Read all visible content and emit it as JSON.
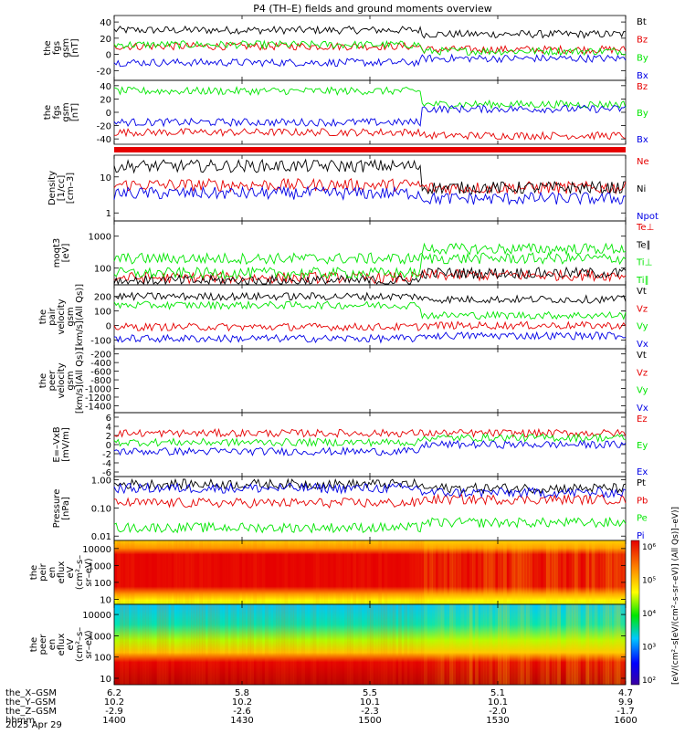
{
  "title": "P4 (TH–E) fields and ground moments overview",
  "colors": {
    "black": "#000000",
    "red": "#e60000",
    "green": "#00e600",
    "blue": "#0000e6"
  },
  "time_axis": {
    "rows": [
      {
        "label": "the_X–GSM",
        "values": [
          "6.2",
          "5.8",
          "5.5",
          "5.1",
          "4.7"
        ]
      },
      {
        "label": "the_Y–GSM",
        "values": [
          "10.2",
          "10.2",
          "10.1",
          "10.1",
          "9.9"
        ]
      },
      {
        "label": "the_Z–GSM",
        "values": [
          "-2.9",
          "-2.6",
          "-2.3",
          "-2.0",
          "-1.7"
        ]
      },
      {
        "label": "hhmm",
        "values": [
          "1400",
          "1430",
          "1500",
          "1530",
          "1600"
        ]
      }
    ],
    "date": "2025 Apr 29",
    "range_hhmm": [
      "1400",
      "1600"
    ]
  },
  "panels": [
    {
      "ylabel": [
        "the",
        "fgs",
        "gsm",
        "[nT]"
      ],
      "ticks": [
        "40",
        "20",
        "0",
        "-20"
      ],
      "ylim": [
        -32,
        48
      ],
      "legend": [
        {
          "text": "Bt",
          "color": "#000000"
        },
        {
          "text": "Bz",
          "color": "#e60000"
        },
        {
          "text": "By",
          "color": "#00e600"
        },
        {
          "text": "Bx",
          "color": "#0000e6"
        }
      ]
    },
    {
      "ylabel": [
        "the",
        "fgs",
        "gsm",
        "[nT]"
      ],
      "ticks": [
        "40",
        "20",
        "0",
        "-20",
        "-40"
      ],
      "ylim": [
        -48,
        48
      ],
      "legend": [
        {
          "text": "Bz",
          "color": "#e60000"
        },
        {
          "text": "By",
          "color": "#00e600"
        },
        {
          "text": "Bx",
          "color": "#0000e6"
        }
      ]
    },
    {
      "ylabel": [
        "Density",
        "[1/cc]",
        "[cm–3]"
      ],
      "ticks": [
        "10",
        "1"
      ],
      "scale": "log",
      "ylim": [
        0.6,
        40
      ],
      "legend": [
        {
          "text": "Ne",
          "color": "#e60000"
        },
        {
          "text": "Ni",
          "color": "#000000"
        },
        {
          "text": "Npot",
          "color": "#0000e6"
        }
      ]
    },
    {
      "ylabel": [
        "moqt3",
        "[eV]"
      ],
      "ticks": [
        "1000",
        "100"
      ],
      "scale": "log",
      "ylim": [
        30,
        3000
      ],
      "legend": [
        {
          "text": "Te⊥",
          "color": "#e60000"
        },
        {
          "text": "Te∥",
          "color": "#000000"
        },
        {
          "text": "Ti⊥",
          "color": "#00e600"
        },
        {
          "text": "Ti∥",
          "color": "#00e600"
        }
      ]
    },
    {
      "ylabel": [
        "the",
        "pair",
        "velocity",
        "gsm",
        "[km/s](All Qs)]"
      ],
      "ticks": [
        "200",
        "100",
        "0",
        "-100"
      ],
      "ylim": [
        -160,
        280
      ],
      "legend": [
        {
          "text": "Vt",
          "color": "#000000"
        },
        {
          "text": "Vz",
          "color": "#e60000"
        },
        {
          "text": "Vy",
          "color": "#00e600"
        },
        {
          "text": "Vx",
          "color": "#0000e6"
        }
      ]
    },
    {
      "ylabel": [
        "the",
        "peer",
        "velocity",
        "gsm",
        "[km/s](All Qs)]"
      ],
      "ticks": [
        "-200",
        "-400",
        "-600",
        "-800",
        "-1000",
        "-1200",
        "-1400"
      ],
      "ylim": [
        -1560,
        -80
      ],
      "legend": [
        {
          "text": "Vt",
          "color": "#000000"
        },
        {
          "text": "Vz",
          "color": "#e60000"
        },
        {
          "text": "Vy",
          "color": "#00e600"
        },
        {
          "text": "Vx",
          "color": "#0000e6"
        }
      ]
    },
    {
      "ylabel": [
        "E=–VxB",
        "[mV/m]"
      ],
      "ticks": [
        "6",
        "4",
        "2",
        "0",
        "-2",
        "-4",
        "-6"
      ],
      "ylim": [
        -7,
        7
      ],
      "legend": [
        {
          "text": "Ez",
          "color": "#e60000"
        },
        {
          "text": "Ey",
          "color": "#00e600"
        },
        {
          "text": "Ex",
          "color": "#0000e6"
        }
      ]
    },
    {
      "ylabel": [
        "Pressure",
        "[nPa]"
      ],
      "ticks": [
        "1.00",
        "0.10",
        "0.01"
      ],
      "scale": "log",
      "ylim": [
        0.007,
        1.3
      ],
      "legend": [
        {
          "text": "Pt",
          "color": "#000000"
        },
        {
          "text": "Pb",
          "color": "#e60000"
        },
        {
          "text": "Pe",
          "color": "#00e600"
        },
        {
          "text": "Pi",
          "color": "#0000e6"
        }
      ]
    },
    {
      "ylabel": [
        "the",
        "peir",
        "en",
        "eflux",
        "eV",
        "(cm²–s–",
        "sr–eV)"
      ],
      "ticks": [
        "10000",
        "1000",
        "100",
        "10"
      ],
      "scale": "log",
      "ylim": [
        5,
        30000
      ]
    },
    {
      "ylabel": [
        "the",
        "peer",
        "en",
        "eflux",
        "eV",
        "(cm²–s–",
        "sr–eV)"
      ],
      "ticks": [
        "10000",
        "1000",
        "100",
        "10"
      ],
      "scale": "log",
      "ylim": [
        5,
        30000
      ]
    }
  ],
  "colorbar": {
    "ticks": [
      "10⁶",
      "10⁵",
      "10⁴",
      "10³",
      "10²"
    ],
    "label": "[eV/(cm²–s[eV/(cm²–s–sr–eV)] (All Qs)]–eV)]",
    "scale": "log",
    "range": [
      100,
      1000000
    ]
  },
  "chart_data": [
    {
      "type": "line",
      "title": "",
      "x_range_hhmm": [
        "1400",
        "1600"
      ],
      "ylim": [
        -32,
        48
      ],
      "series": [
        {
          "name": "Bt",
          "approx_level_before_1512": 30,
          "approx_level_after_1512": 25
        },
        {
          "name": "Bz",
          "approx_level_before_1512": 10,
          "approx_level_after_1512": 6
        },
        {
          "name": "By",
          "approx_level_before_1512": 12,
          "approx_level_after_1512": 4
        },
        {
          "name": "Bx",
          "approx_level_before_1512": -10,
          "approx_level_after_1512": -5
        }
      ]
    },
    {
      "type": "line",
      "ylim": [
        -48,
        48
      ],
      "series": [
        {
          "name": "Bz",
          "approx_level_before_1512": -30,
          "approx_level_after_1512": -35
        },
        {
          "name": "By",
          "approx_level_before_1512": 32,
          "approx_level_after_1512": 12
        },
        {
          "name": "Bx",
          "approx_level_before_1512": -15,
          "approx_level_after_1512": 5
        }
      ]
    },
    {
      "type": "line",
      "scale": "log",
      "ylim": [
        0.6,
        40
      ],
      "series": [
        {
          "name": "Ne",
          "approx_level_before_1512": 6,
          "approx_level_after_1512": 5
        },
        {
          "name": "Ni",
          "approx_level_before_1512": 20,
          "approx_level_after_1512": 5
        },
        {
          "name": "Npot",
          "approx_level_before_1512": 3.5,
          "approx_level_after_1512": 2.5
        }
      ]
    },
    {
      "type": "line",
      "scale": "log",
      "ylim": [
        30,
        3000
      ],
      "series": [
        {
          "name": "Te⊥",
          "approx_level_before_1512": 50,
          "approx_level_after_1512": 60
        },
        {
          "name": "Te∥",
          "approx_level_before_1512": 40,
          "approx_level_after_1512": 70
        },
        {
          "name": "Ti⊥",
          "approx_level_before_1512": 200,
          "approx_level_after_1512": 400
        },
        {
          "name": "Ti∥",
          "approx_level_before_1512": 70,
          "approx_level_after_1512": 200
        }
      ]
    },
    {
      "type": "line",
      "ylim": [
        -160,
        280
      ],
      "series": [
        {
          "name": "Vt",
          "approx_level_before_1512": 200,
          "approx_level_after_1512": 180
        },
        {
          "name": "Vz",
          "approx_level_before_1512": -10,
          "approx_level_after_1512": 0
        },
        {
          "name": "Vy",
          "approx_level_before_1512": 140,
          "approx_level_after_1512": 70
        },
        {
          "name": "Vx",
          "approx_level_before_1512": -90,
          "approx_level_after_1512": -70
        }
      ]
    },
    {
      "type": "line",
      "ylim": [
        -1560,
        -80
      ],
      "series": []
    },
    {
      "type": "line",
      "ylim": [
        -7,
        7
      ],
      "series": [
        {
          "name": "Ez",
          "approx_level_before_1512": 2.5,
          "approx_level_after_1512": 2.5
        },
        {
          "name": "Ey",
          "approx_level_before_1512": 0.5,
          "approx_level_after_1512": 1.5
        },
        {
          "name": "Ex",
          "approx_level_before_1512": -1.5,
          "approx_level_after_1512": 0
        }
      ]
    },
    {
      "type": "line",
      "scale": "log",
      "ylim": [
        0.007,
        1.3
      ],
      "series": [
        {
          "name": "Pt",
          "approx_level_before_1512": 0.7,
          "approx_level_after_1512": 0.5
        },
        {
          "name": "Pb",
          "approx_level_before_1512": 0.15,
          "approx_level_after_1512": 0.2
        },
        {
          "name": "Pe",
          "approx_level_before_1512": 0.02,
          "approx_level_after_1512": 0.03
        },
        {
          "name": "Pi",
          "approx_level_before_1512": 0.5,
          "approx_level_after_1512": 0.35
        }
      ]
    },
    {
      "type": "heatmap",
      "scale": "log",
      "ylim": [
        5,
        30000
      ],
      "color_range": [
        100,
        1000000
      ],
      "peak_band_ev": [
        100,
        5000
      ]
    },
    {
      "type": "heatmap",
      "scale": "log",
      "ylim": [
        5,
        30000
      ],
      "color_range": [
        100,
        1000000
      ],
      "peak_band_ev": [
        10,
        60
      ]
    }
  ]
}
